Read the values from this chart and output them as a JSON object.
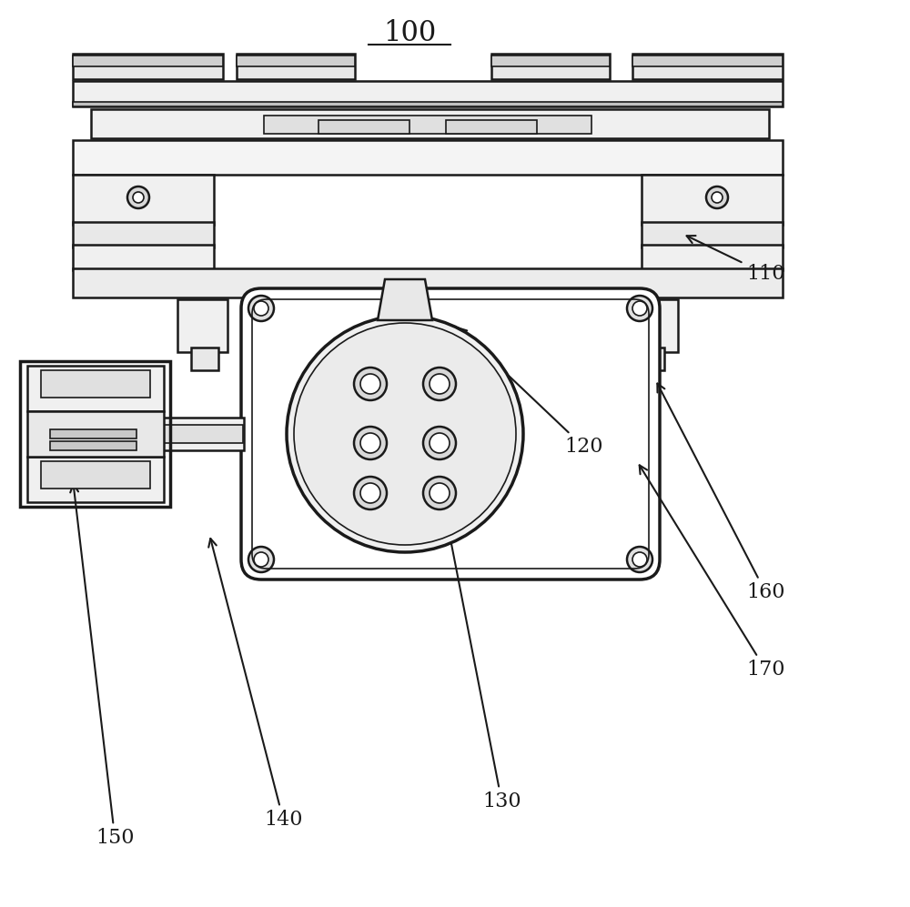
{
  "title": "100",
  "background_color": "#ffffff",
  "line_color": "#1a1a1a",
  "labels": {
    "100": [
      0.5,
      0.97,
      "100"
    ],
    "110": [
      0.88,
      0.73,
      "110"
    ],
    "120": [
      0.78,
      0.5,
      "120"
    ],
    "130": [
      0.6,
      0.08,
      "130"
    ],
    "140": [
      0.3,
      0.1,
      "140"
    ],
    "150": [
      0.1,
      0.07,
      "150"
    ],
    "160": [
      0.88,
      0.35,
      "160"
    ],
    "170": [
      0.88,
      0.26,
      "170"
    ]
  },
  "figsize": [
    10.0,
    9.97
  ]
}
